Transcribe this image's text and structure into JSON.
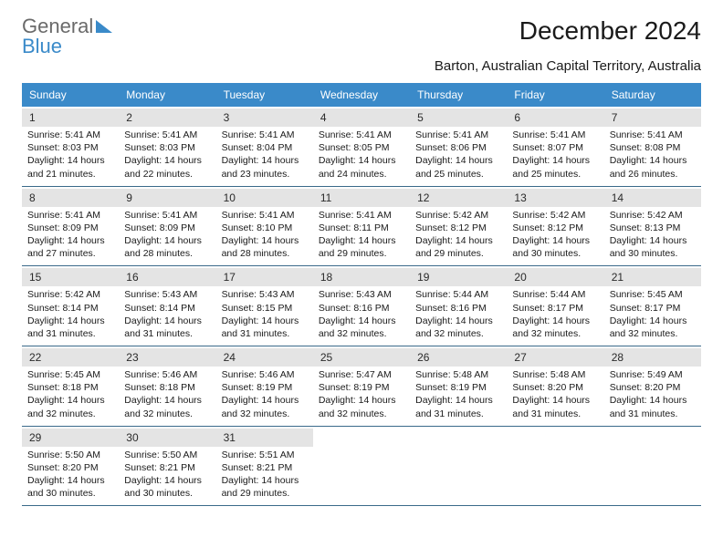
{
  "brand": {
    "part1": "General",
    "part2": "Blue"
  },
  "title": "December 2024",
  "location": "Barton, Australian Capital Territory, Australia",
  "colors": {
    "header_bg": "#3a8ac9",
    "header_text": "#ffffff",
    "daynum_bg": "#e4e4e4",
    "divider": "#3a6a8a",
    "text": "#1a1a1a",
    "logo_gray": "#6a6a6a",
    "logo_blue": "#3a8ac9",
    "background": "#ffffff"
  },
  "typography": {
    "title_fontsize": 28,
    "subtitle_fontsize": 15,
    "weekday_fontsize": 12,
    "cell_fontsize": 10.5
  },
  "weekdays": [
    "Sunday",
    "Monday",
    "Tuesday",
    "Wednesday",
    "Thursday",
    "Friday",
    "Saturday"
  ],
  "weeks": [
    [
      {
        "n": "1",
        "sunrise": "5:41 AM",
        "sunset": "8:03 PM",
        "daylight": "14 hours and 21 minutes."
      },
      {
        "n": "2",
        "sunrise": "5:41 AM",
        "sunset": "8:03 PM",
        "daylight": "14 hours and 22 minutes."
      },
      {
        "n": "3",
        "sunrise": "5:41 AM",
        "sunset": "8:04 PM",
        "daylight": "14 hours and 23 minutes."
      },
      {
        "n": "4",
        "sunrise": "5:41 AM",
        "sunset": "8:05 PM",
        "daylight": "14 hours and 24 minutes."
      },
      {
        "n": "5",
        "sunrise": "5:41 AM",
        "sunset": "8:06 PM",
        "daylight": "14 hours and 25 minutes."
      },
      {
        "n": "6",
        "sunrise": "5:41 AM",
        "sunset": "8:07 PM",
        "daylight": "14 hours and 25 minutes."
      },
      {
        "n": "7",
        "sunrise": "5:41 AM",
        "sunset": "8:08 PM",
        "daylight": "14 hours and 26 minutes."
      }
    ],
    [
      {
        "n": "8",
        "sunrise": "5:41 AM",
        "sunset": "8:09 PM",
        "daylight": "14 hours and 27 minutes."
      },
      {
        "n": "9",
        "sunrise": "5:41 AM",
        "sunset": "8:09 PM",
        "daylight": "14 hours and 28 minutes."
      },
      {
        "n": "10",
        "sunrise": "5:41 AM",
        "sunset": "8:10 PM",
        "daylight": "14 hours and 28 minutes."
      },
      {
        "n": "11",
        "sunrise": "5:41 AM",
        "sunset": "8:11 PM",
        "daylight": "14 hours and 29 minutes."
      },
      {
        "n": "12",
        "sunrise": "5:42 AM",
        "sunset": "8:12 PM",
        "daylight": "14 hours and 29 minutes."
      },
      {
        "n": "13",
        "sunrise": "5:42 AM",
        "sunset": "8:12 PM",
        "daylight": "14 hours and 30 minutes."
      },
      {
        "n": "14",
        "sunrise": "5:42 AM",
        "sunset": "8:13 PM",
        "daylight": "14 hours and 30 minutes."
      }
    ],
    [
      {
        "n": "15",
        "sunrise": "5:42 AM",
        "sunset": "8:14 PM",
        "daylight": "14 hours and 31 minutes."
      },
      {
        "n": "16",
        "sunrise": "5:43 AM",
        "sunset": "8:14 PM",
        "daylight": "14 hours and 31 minutes."
      },
      {
        "n": "17",
        "sunrise": "5:43 AM",
        "sunset": "8:15 PM",
        "daylight": "14 hours and 31 minutes."
      },
      {
        "n": "18",
        "sunrise": "5:43 AM",
        "sunset": "8:16 PM",
        "daylight": "14 hours and 32 minutes."
      },
      {
        "n": "19",
        "sunrise": "5:44 AM",
        "sunset": "8:16 PM",
        "daylight": "14 hours and 32 minutes."
      },
      {
        "n": "20",
        "sunrise": "5:44 AM",
        "sunset": "8:17 PM",
        "daylight": "14 hours and 32 minutes."
      },
      {
        "n": "21",
        "sunrise": "5:45 AM",
        "sunset": "8:17 PM",
        "daylight": "14 hours and 32 minutes."
      }
    ],
    [
      {
        "n": "22",
        "sunrise": "5:45 AM",
        "sunset": "8:18 PM",
        "daylight": "14 hours and 32 minutes."
      },
      {
        "n": "23",
        "sunrise": "5:46 AM",
        "sunset": "8:18 PM",
        "daylight": "14 hours and 32 minutes."
      },
      {
        "n": "24",
        "sunrise": "5:46 AM",
        "sunset": "8:19 PM",
        "daylight": "14 hours and 32 minutes."
      },
      {
        "n": "25",
        "sunrise": "5:47 AM",
        "sunset": "8:19 PM",
        "daylight": "14 hours and 32 minutes."
      },
      {
        "n": "26",
        "sunrise": "5:48 AM",
        "sunset": "8:19 PM",
        "daylight": "14 hours and 31 minutes."
      },
      {
        "n": "27",
        "sunrise": "5:48 AM",
        "sunset": "8:20 PM",
        "daylight": "14 hours and 31 minutes."
      },
      {
        "n": "28",
        "sunrise": "5:49 AM",
        "sunset": "8:20 PM",
        "daylight": "14 hours and 31 minutes."
      }
    ],
    [
      {
        "n": "29",
        "sunrise": "5:50 AM",
        "sunset": "8:20 PM",
        "daylight": "14 hours and 30 minutes."
      },
      {
        "n": "30",
        "sunrise": "5:50 AM",
        "sunset": "8:21 PM",
        "daylight": "14 hours and 30 minutes."
      },
      {
        "n": "31",
        "sunrise": "5:51 AM",
        "sunset": "8:21 PM",
        "daylight": "14 hours and 29 minutes."
      },
      null,
      null,
      null,
      null
    ]
  ],
  "labels": {
    "sunrise": "Sunrise:",
    "sunset": "Sunset:",
    "daylight": "Daylight:"
  }
}
